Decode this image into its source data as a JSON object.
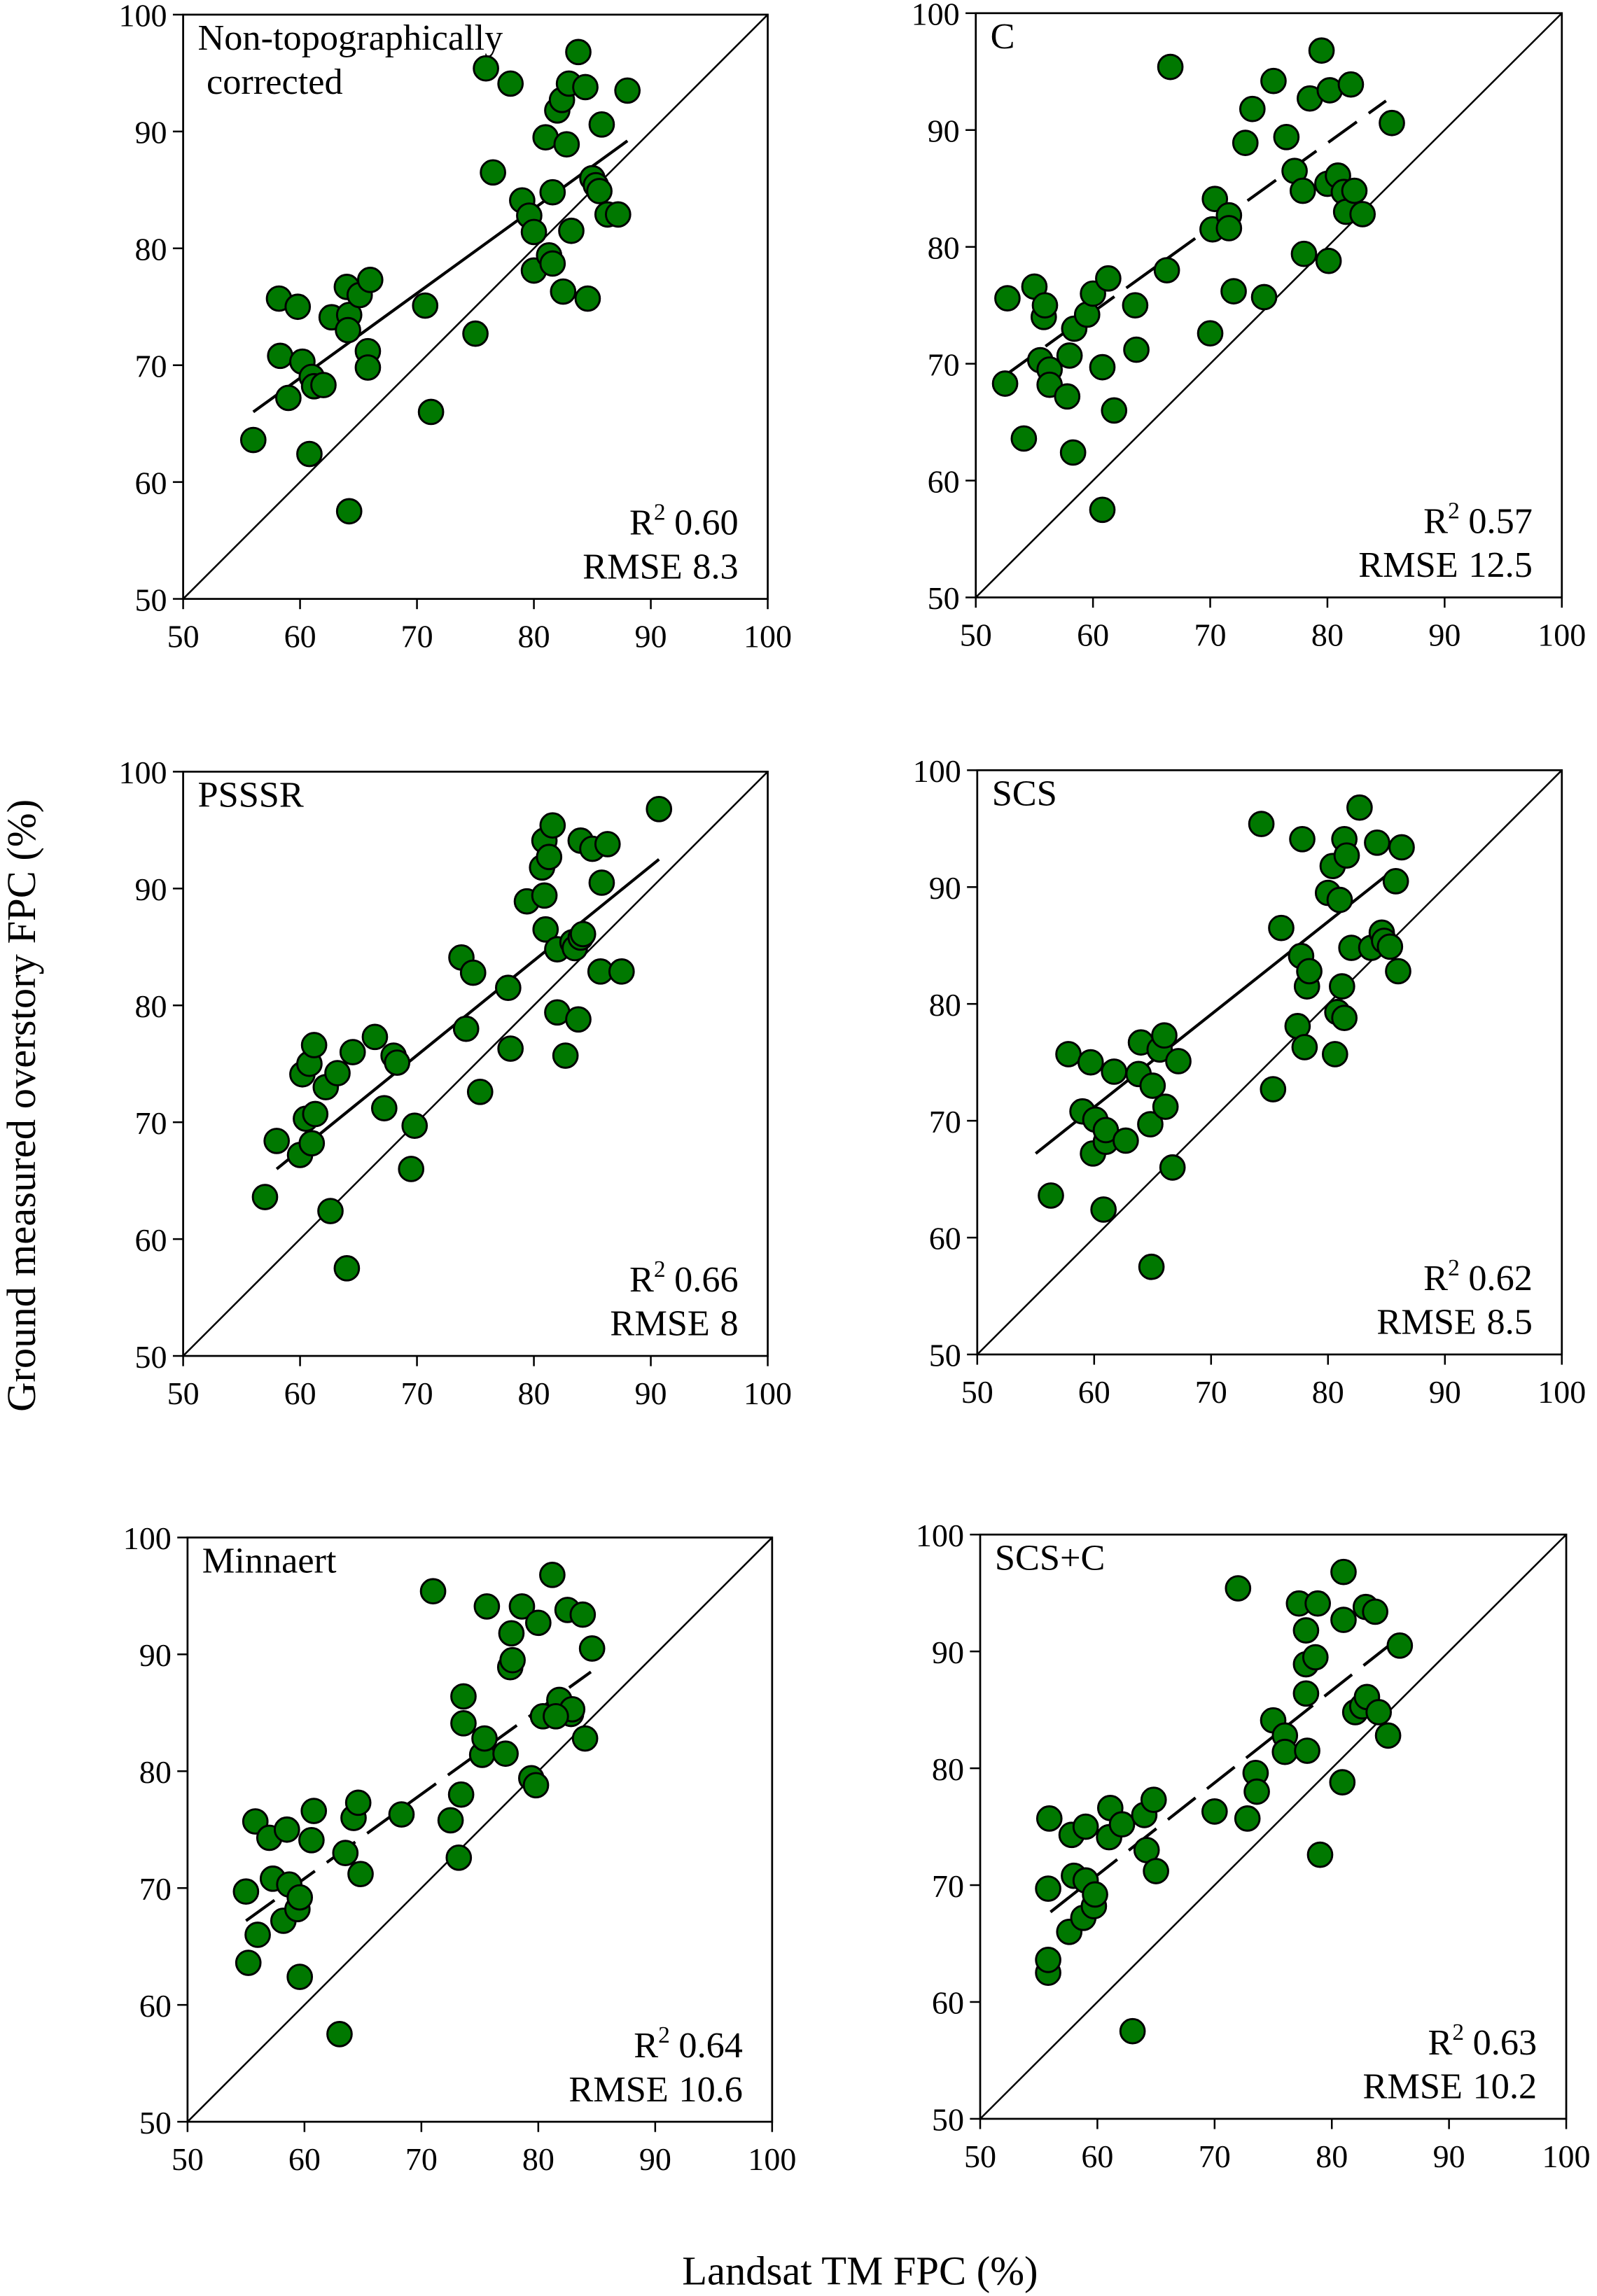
{
  "chart_data": {
    "type": "scatter",
    "xlabel": "Landsat TM FPC (%)",
    "ylabel": "Ground measured overstory FPC (%)",
    "xlim": [
      50,
      100
    ],
    "ylim": [
      50,
      100
    ],
    "ticks": [
      "50",
      "60",
      "70",
      "80",
      "90",
      "100"
    ],
    "marker_color": "#007800",
    "r_label": "R",
    "r_sup": "2",
    "rmse_label": "RMSE",
    "panels": [
      {
        "title_lines": [
          "Non-topographically",
          "corrected"
        ],
        "r2": "0.60",
        "rmse": "8.3",
        "fit_style": "solid",
        "fit": [
          [
            56,
            66
          ],
          [
            88,
            89.2
          ]
        ],
        "points": [
          [
            56,
            63.6
          ],
          [
            58.2,
            75.7
          ],
          [
            58.3,
            70.8
          ],
          [
            59,
            67.2
          ],
          [
            59.8,
            75
          ],
          [
            60.2,
            70.3
          ],
          [
            60.8,
            62.4
          ],
          [
            61,
            69
          ],
          [
            61.2,
            68.2
          ],
          [
            62,
            68.3
          ],
          [
            62.7,
            74.1
          ],
          [
            64,
            76.7
          ],
          [
            64.2,
            74.3
          ],
          [
            64.1,
            73
          ],
          [
            64.2,
            57.5
          ],
          [
            65.1,
            76
          ],
          [
            65.8,
            71.2
          ],
          [
            65.8,
            69.8
          ],
          [
            66,
            77.3
          ],
          [
            70.7,
            75.1
          ],
          [
            71.2,
            66
          ],
          [
            75,
            72.7
          ],
          [
            75.9,
            95.4
          ],
          [
            76.5,
            86.5
          ],
          [
            78,
            94.1
          ],
          [
            79,
            84.1
          ],
          [
            79.6,
            82.8
          ],
          [
            80,
            81.4
          ],
          [
            80,
            78.1
          ],
          [
            81,
            89.5
          ],
          [
            81.3,
            79.4
          ],
          [
            81.6,
            78.7
          ],
          [
            81.6,
            84.8
          ],
          [
            82,
            91.8
          ],
          [
            82.4,
            92.7
          ],
          [
            82.5,
            76.3
          ],
          [
            82.8,
            88.9
          ],
          [
            83,
            94.1
          ],
          [
            83.2,
            81.5
          ],
          [
            83.8,
            96.8
          ],
          [
            84.4,
            93.8
          ],
          [
            84.6,
            75.7
          ],
          [
            85,
            86
          ],
          [
            85.3,
            85.4
          ],
          [
            85.6,
            84.9
          ],
          [
            85.8,
            90.6
          ],
          [
            86.3,
            82.9
          ],
          [
            87.2,
            82.9
          ],
          [
            88,
            93.5
          ]
        ]
      },
      {
        "title_lines": [
          "C"
        ],
        "r2": "0.57",
        "rmse": "12.5",
        "fit_style": "dashed",
        "fit": [
          [
            52.5,
            69
          ],
          [
            85,
            92.5
          ]
        ],
        "points": [
          [
            52.5,
            68.3
          ],
          [
            52.7,
            75.6
          ],
          [
            54.1,
            63.6
          ],
          [
            55,
            76.6
          ],
          [
            55.5,
            70.3
          ],
          [
            55.8,
            74
          ],
          [
            55.9,
            75
          ],
          [
            56.3,
            69.5
          ],
          [
            56.3,
            68.2
          ],
          [
            57.8,
            67.2
          ],
          [
            58,
            70.7
          ],
          [
            58.3,
            62.4
          ],
          [
            58.4,
            73
          ],
          [
            59.5,
            74.2
          ],
          [
            60,
            76
          ],
          [
            60.8,
            57.5
          ],
          [
            60.8,
            69.7
          ],
          [
            61.3,
            77.3
          ],
          [
            61.8,
            66
          ],
          [
            63.6,
            75
          ],
          [
            63.7,
            71.2
          ],
          [
            66.3,
            78
          ],
          [
            66.6,
            95.4
          ],
          [
            70,
            72.6
          ],
          [
            70.2,
            81.5
          ],
          [
            70.4,
            84.1
          ],
          [
            71.6,
            82.7
          ],
          [
            71.6,
            81.6
          ],
          [
            72,
            76.2
          ],
          [
            73,
            88.9
          ],
          [
            73.6,
            91.8
          ],
          [
            74.6,
            75.7
          ],
          [
            75.4,
            94.2
          ],
          [
            76.5,
            89.4
          ],
          [
            77.2,
            86.5
          ],
          [
            77.9,
            84.8
          ],
          [
            78,
            79.4
          ],
          [
            78.5,
            92.7
          ],
          [
            79.5,
            96.8
          ],
          [
            80,
            85.4
          ],
          [
            80.1,
            78.8
          ],
          [
            80.2,
            93.4
          ],
          [
            80.9,
            86.1
          ],
          [
            81.4,
            84.7
          ],
          [
            81.6,
            83
          ],
          [
            82,
            93.9
          ],
          [
            82.3,
            84.8
          ],
          [
            83,
            82.8
          ],
          [
            85.5,
            90.6
          ]
        ]
      },
      {
        "title_lines": [
          "PSSSR"
        ],
        "r2": "0.66",
        "rmse": "8",
        "fit_style": "solid",
        "fit": [
          [
            58,
            66
          ],
          [
            90.7,
            92.5
          ]
        ],
        "points": [
          [
            57,
            63.6
          ],
          [
            58,
            68.4
          ],
          [
            60,
            67.2
          ],
          [
            60.2,
            74.1
          ],
          [
            60.5,
            70.3
          ],
          [
            60.8,
            75
          ],
          [
            61,
            68.2
          ],
          [
            61.2,
            76.6
          ],
          [
            61.3,
            70.7
          ],
          [
            62.2,
            73
          ],
          [
            62.6,
            62.4
          ],
          [
            63.2,
            74.2
          ],
          [
            64,
            57.5
          ],
          [
            64.5,
            76
          ],
          [
            66.4,
            77.3
          ],
          [
            67.2,
            71.2
          ],
          [
            68,
            75.7
          ],
          [
            68.3,
            75.1
          ],
          [
            69.5,
            66
          ],
          [
            69.8,
            69.7
          ],
          [
            73.8,
            84.1
          ],
          [
            74.2,
            78
          ],
          [
            74.8,
            82.8
          ],
          [
            75.4,
            72.6
          ],
          [
            77.8,
            81.5
          ],
          [
            78,
            76.3
          ],
          [
            79.4,
            88.9
          ],
          [
            80.7,
            91.8
          ],
          [
            80.9,
            94.1
          ],
          [
            80.9,
            89.4
          ],
          [
            81,
            86.5
          ],
          [
            81.3,
            92.7
          ],
          [
            81.6,
            95.4
          ],
          [
            82,
            84.8
          ],
          [
            82,
            79.4
          ],
          [
            82.7,
            75.7
          ],
          [
            83.3,
            85.4
          ],
          [
            83.5,
            84.9
          ],
          [
            83.8,
            78.8
          ],
          [
            84,
            94.1
          ],
          [
            84,
            85.8
          ],
          [
            84.2,
            86.1
          ],
          [
            85,
            93.4
          ],
          [
            85.7,
            82.9
          ],
          [
            85.8,
            90.5
          ],
          [
            86.3,
            93.8
          ],
          [
            87.5,
            82.9
          ],
          [
            90.7,
            96.8
          ]
        ]
      },
      {
        "title_lines": [
          "SCS"
        ],
        "r2": "0.62",
        "rmse": "8.5",
        "fit_style": "solid",
        "fit": [
          [
            55,
            67.2
          ],
          [
            85,
            91
          ]
        ],
        "points": [
          [
            56.3,
            63.6
          ],
          [
            57.8,
            75.7
          ],
          [
            59,
            70.8
          ],
          [
            59.7,
            75
          ],
          [
            59.9,
            67.2
          ],
          [
            60.1,
            70.1
          ],
          [
            60.8,
            62.4
          ],
          [
            61,
            68.2
          ],
          [
            61,
            69.2
          ],
          [
            61.7,
            74.2
          ],
          [
            62.7,
            68.3
          ],
          [
            63.8,
            74
          ],
          [
            64,
            76.7
          ],
          [
            64.8,
            69.7
          ],
          [
            64.9,
            57.5
          ],
          [
            65,
            73
          ],
          [
            65.6,
            76.1
          ],
          [
            66,
            77.3
          ],
          [
            66.1,
            71.2
          ],
          [
            66.7,
            66
          ],
          [
            67.2,
            75.1
          ],
          [
            75.3,
            72.7
          ],
          [
            74.3,
            95.4
          ],
          [
            76,
            86.5
          ],
          [
            77.4,
            78.1
          ],
          [
            77.7,
            84.1
          ],
          [
            77.8,
            94.1
          ],
          [
            78,
            76.3
          ],
          [
            78.2,
            81.5
          ],
          [
            78.4,
            82.8
          ],
          [
            80,
            89.5
          ],
          [
            80.4,
            91.8
          ],
          [
            80.6,
            75.7
          ],
          [
            80.8,
            79.3
          ],
          [
            81,
            88.9
          ],
          [
            81.2,
            81.5
          ],
          [
            81.4,
            78.8
          ],
          [
            81.4,
            94.1
          ],
          [
            81.6,
            92.7
          ],
          [
            82,
            84.8
          ],
          [
            82.7,
            96.8
          ],
          [
            83.7,
            84.8
          ],
          [
            84.2,
            93.8
          ],
          [
            84.6,
            86.1
          ],
          [
            84.8,
            85.4
          ],
          [
            85.3,
            84.9
          ],
          [
            85.8,
            90.5
          ],
          [
            86,
            82.8
          ],
          [
            86.3,
            93.4
          ]
        ]
      },
      {
        "title_lines": [
          "Minnaert"
        ],
        "r2": "0.64",
        "rmse": "10.6",
        "fit_style": "dashed",
        "fit": [
          [
            55,
            67.2
          ],
          [
            84.5,
            88.5
          ]
        ],
        "points": [
          [
            55,
            69.7
          ],
          [
            55.2,
            63.6
          ],
          [
            55.8,
            75.7
          ],
          [
            56,
            66
          ],
          [
            57,
            74.3
          ],
          [
            57.3,
            70.8
          ],
          [
            58.2,
            67.2
          ],
          [
            58.5,
            75
          ],
          [
            58.7,
            70.3
          ],
          [
            59.4,
            68.2
          ],
          [
            59.6,
            62.4
          ],
          [
            59.6,
            69.2
          ],
          [
            60.6,
            74.1
          ],
          [
            60.8,
            76.6
          ],
          [
            63,
            57.5
          ],
          [
            63.5,
            73
          ],
          [
            64.2,
            76
          ],
          [
            64.6,
            77.3
          ],
          [
            64.8,
            71.2
          ],
          [
            68.3,
            76.3
          ],
          [
            71,
            95.4
          ],
          [
            72.5,
            75.8
          ],
          [
            73.2,
            72.6
          ],
          [
            73.4,
            78
          ],
          [
            73.6,
            86.4
          ],
          [
            73.6,
            84.1
          ],
          [
            75.2,
            81.4
          ],
          [
            75.4,
            82.8
          ],
          [
            75.6,
            94.1
          ],
          [
            77.2,
            81.5
          ],
          [
            77.6,
            88.9
          ],
          [
            77.7,
            91.8
          ],
          [
            77.8,
            89.5
          ],
          [
            78.6,
            94.1
          ],
          [
            79.4,
            79.4
          ],
          [
            79.8,
            78.8
          ],
          [
            80,
            92.7
          ],
          [
            80.4,
            84.7
          ],
          [
            81.2,
            96.8
          ],
          [
            81.8,
            86.1
          ],
          [
            82.5,
            93.8
          ],
          [
            82.8,
            84.9
          ],
          [
            82.9,
            85.3
          ],
          [
            83.8,
            93.4
          ],
          [
            84,
            82.8
          ],
          [
            84.6,
            90.5
          ],
          [
            81.5,
            84.7
          ]
        ]
      },
      {
        "title_lines": [
          "SCS+C"
        ],
        "r2": "0.63",
        "rmse": "10.2",
        "fit_style": "dashed",
        "fit": [
          [
            56,
            67.7
          ],
          [
            85.5,
            91
          ]
        ],
        "points": [
          [
            55.8,
            62.5
          ],
          [
            55.8,
            63.6
          ],
          [
            55.8,
            69.7
          ],
          [
            55.9,
            75.7
          ],
          [
            57.6,
            66
          ],
          [
            57.8,
            74.3
          ],
          [
            58,
            70.8
          ],
          [
            58.8,
            67.2
          ],
          [
            59,
            75
          ],
          [
            59,
            70.4
          ],
          [
            59.7,
            68.2
          ],
          [
            59.8,
            69.2
          ],
          [
            61,
            74.1
          ],
          [
            61.1,
            76.6
          ],
          [
            62.1,
            75.2
          ],
          [
            63,
            57.5
          ],
          [
            64,
            76
          ],
          [
            64.2,
            73
          ],
          [
            64.8,
            77.3
          ],
          [
            65,
            71.2
          ],
          [
            70,
            76.3
          ],
          [
            72,
            95.4
          ],
          [
            72.8,
            75.7
          ],
          [
            73.5,
            79.6
          ],
          [
            73.6,
            78
          ],
          [
            75,
            84.1
          ],
          [
            76,
            82.8
          ],
          [
            76,
            81.4
          ],
          [
            77.2,
            94.1
          ],
          [
            77.8,
            91.8
          ],
          [
            77.8,
            88.9
          ],
          [
            77.8,
            86.4
          ],
          [
            77.9,
            81.5
          ],
          [
            78.6,
            89.5
          ],
          [
            78.8,
            94.1
          ],
          [
            79,
            72.6
          ],
          [
            80.9,
            78.8
          ],
          [
            81,
            96.8
          ],
          [
            81,
            92.7
          ],
          [
            82,
            84.8
          ],
          [
            82.6,
            85.3
          ],
          [
            82.9,
            93.8
          ],
          [
            83,
            86.1
          ],
          [
            83.7,
            93.4
          ],
          [
            84,
            84.8
          ],
          [
            84.8,
            82.8
          ],
          [
            85.8,
            90.5
          ]
        ]
      }
    ]
  }
}
